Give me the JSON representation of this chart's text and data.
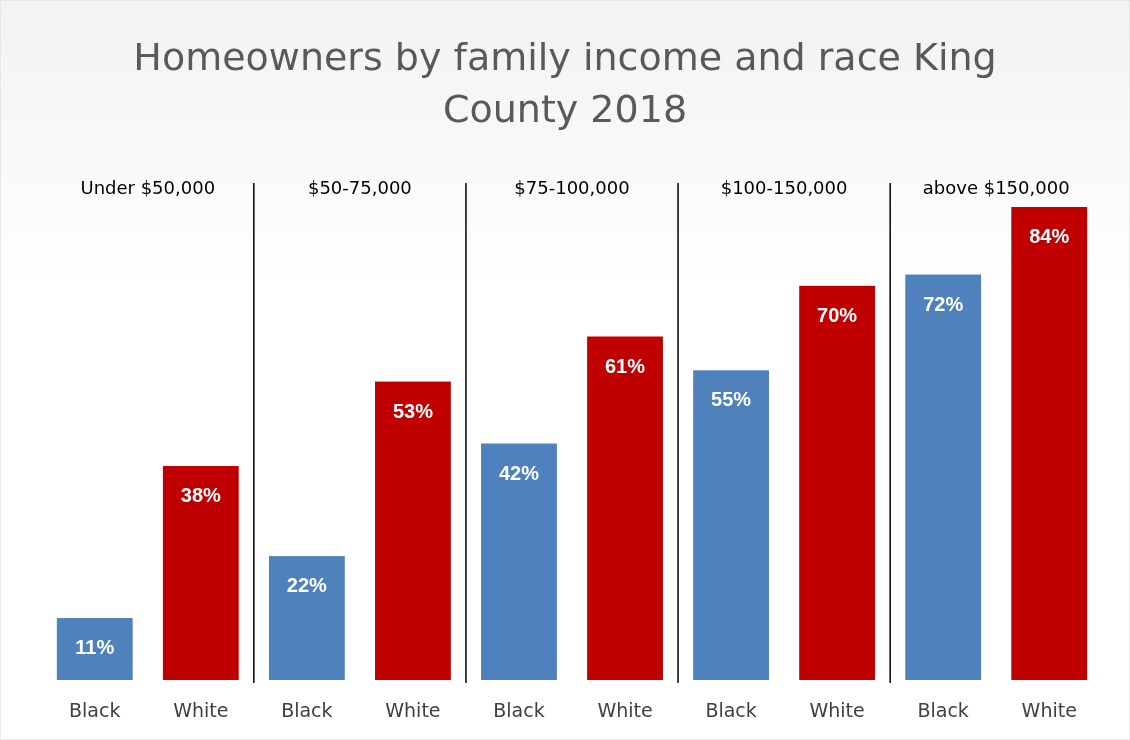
{
  "chart_data": {
    "type": "bar",
    "title": "Homeowners by family income and race  King County 2018",
    "categories": [
      "Black",
      "White",
      "Black",
      "White",
      "Black",
      "White",
      "Black",
      "White",
      "Black",
      "White"
    ],
    "values": [
      11,
      38,
      22,
      53,
      42,
      61,
      55,
      70,
      72,
      84
    ],
    "colors": [
      "#4f81bd",
      "#c00000",
      "#4f81bd",
      "#c00000",
      "#4f81bd",
      "#c00000",
      "#4f81bd",
      "#c00000",
      "#4f81bd",
      "#c00000"
    ],
    "value_labels": [
      "11%",
      "38%",
      "22%",
      "53%",
      "42%",
      "61%",
      "55%",
      "70%",
      "72%",
      "84%"
    ],
    "annotations": [
      "Under $50,000",
      "$50-75,000",
      "$75-100,000",
      "$100-150,000",
      "above $150,000"
    ]
  }
}
